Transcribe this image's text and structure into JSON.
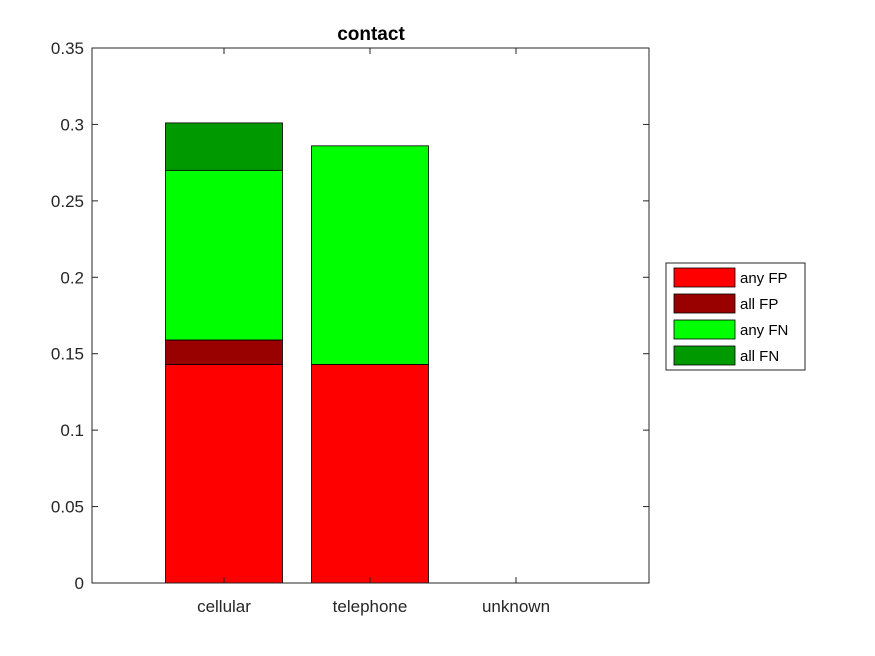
{
  "chart_data": {
    "type": "bar",
    "stacked": true,
    "title": "contact",
    "xlabel": "",
    "ylabel": "",
    "categories": [
      "cellular",
      "telephone",
      "unknown"
    ],
    "ylim": [
      0,
      0.35
    ],
    "yticks": [
      "0",
      "0.05",
      "0.1",
      "0.15",
      "0.2",
      "0.25",
      "0.3",
      "0.35"
    ],
    "ytick_values": [
      0,
      0.05,
      0.1,
      0.15,
      0.2,
      0.25,
      0.3,
      0.35
    ],
    "grid": false,
    "legend_position": "right",
    "series": [
      {
        "name": "any FP",
        "color": "#ff0000",
        "values": [
          0.143,
          0.143,
          0
        ]
      },
      {
        "name": "all FP",
        "color": "#990000",
        "values": [
          0.016,
          0,
          0
        ]
      },
      {
        "name": "any FN",
        "color": "#00ff00",
        "values": [
          0.111,
          0.143,
          0
        ]
      },
      {
        "name": "all FN",
        "color": "#009900",
        "values": [
          0.031,
          0,
          0
        ]
      }
    ]
  }
}
